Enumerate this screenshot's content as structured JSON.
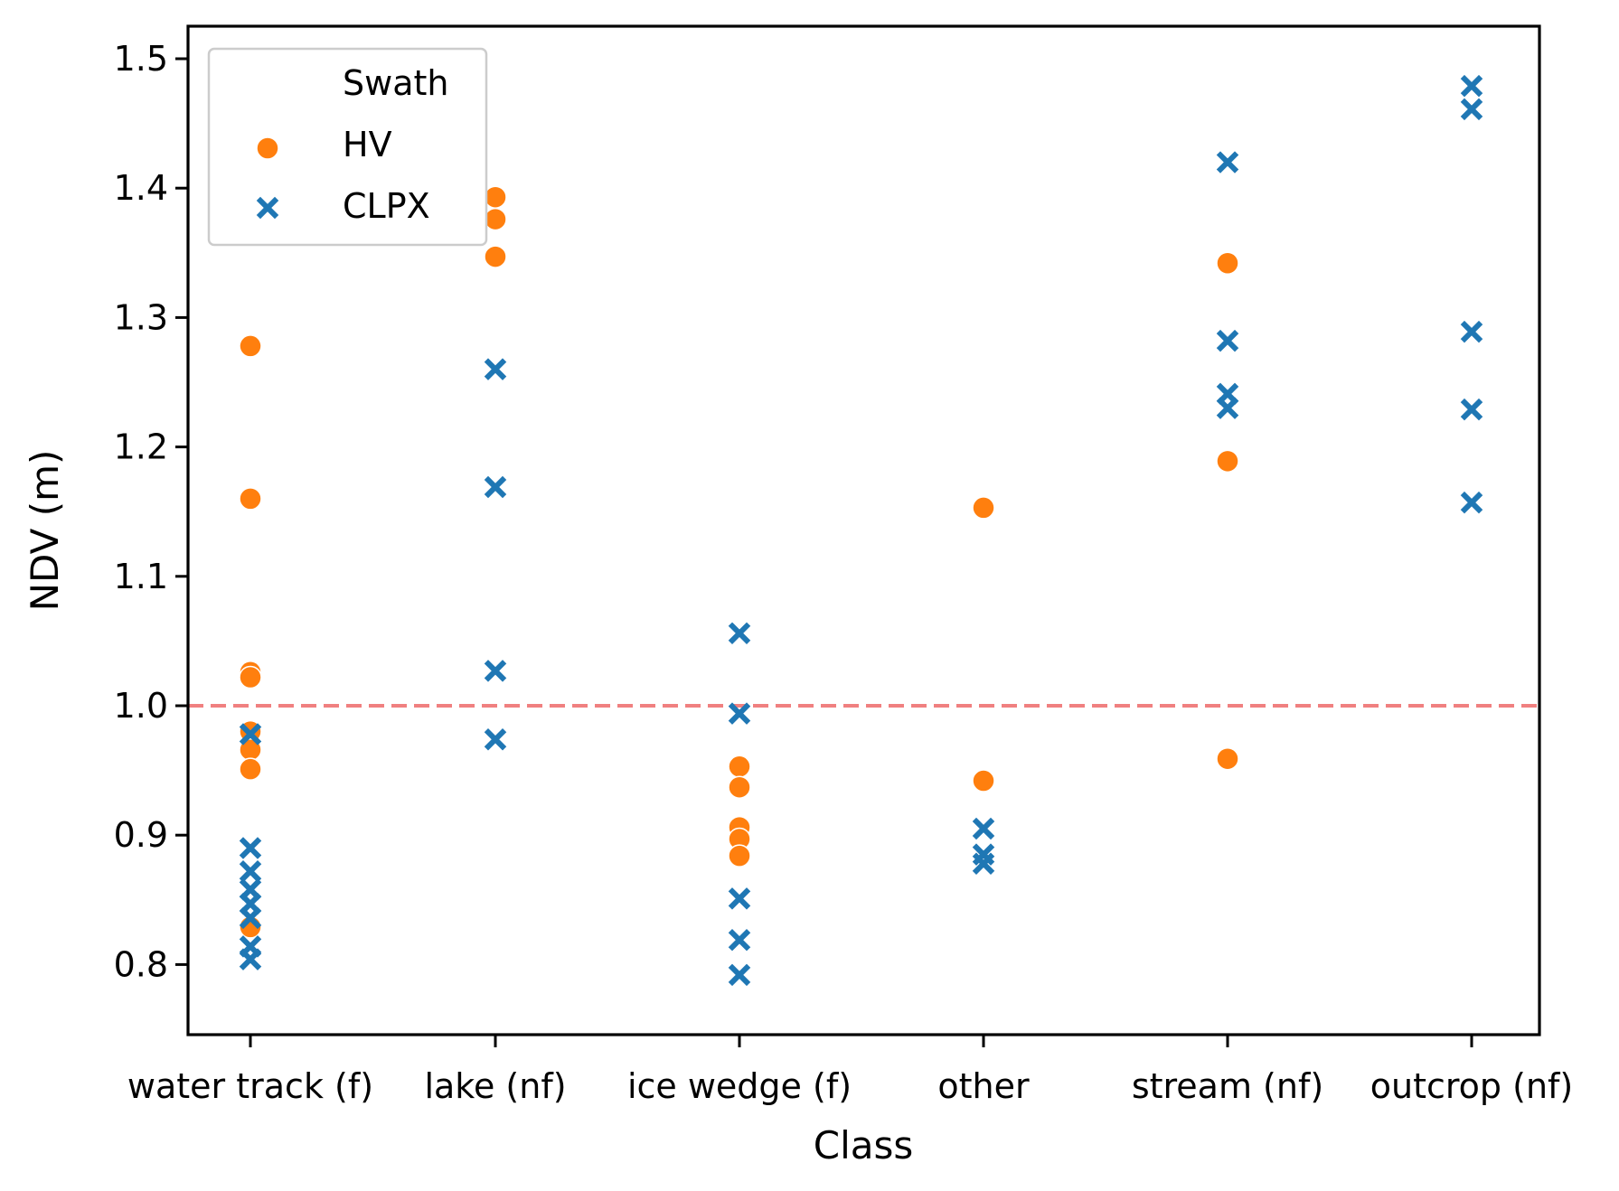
{
  "chart_data": {
    "type": "scatter",
    "title": "",
    "xlabel": "Class",
    "ylabel": "NDV (m)",
    "categories": [
      "water track (f)",
      "lake (nf)",
      "ice wedge (f)",
      "other",
      "stream (nf)",
      "outcrop (nf)"
    ],
    "ylim": [
      0.75,
      1.52
    ],
    "yticks": [
      0.8,
      0.9,
      1.0,
      1.1,
      1.2,
      1.3,
      1.4,
      1.5
    ],
    "ytick_labels": [
      "0.8",
      "0.9",
      "1.0",
      "1.1",
      "1.2",
      "1.3",
      "1.4",
      "1.5"
    ],
    "grid": false,
    "legend": {
      "title": "Swath",
      "placement": "top-left",
      "entries": [
        "HV",
        "CLPX"
      ]
    },
    "reference_line": {
      "y": 1.0,
      "style": "dashed",
      "color": "#f08080"
    },
    "series": [
      {
        "name": "HV",
        "marker": "circle",
        "color": "#ff7f0e",
        "points": [
          {
            "category": "water track (f)",
            "y": 1.278
          },
          {
            "category": "water track (f)",
            "y": 1.16
          },
          {
            "category": "water track (f)",
            "y": 1.026
          },
          {
            "category": "water track (f)",
            "y": 1.022
          },
          {
            "category": "water track (f)",
            "y": 0.98
          },
          {
            "category": "water track (f)",
            "y": 0.966
          },
          {
            "category": "water track (f)",
            "y": 0.951
          },
          {
            "category": "water track (f)",
            "y": 0.829
          },
          {
            "category": "lake (nf)",
            "y": 1.393
          },
          {
            "category": "lake (nf)",
            "y": 1.376
          },
          {
            "category": "lake (nf)",
            "y": 1.347
          },
          {
            "category": "ice wedge (f)",
            "y": 0.953
          },
          {
            "category": "ice wedge (f)",
            "y": 0.937
          },
          {
            "category": "ice wedge (f)",
            "y": 0.906
          },
          {
            "category": "ice wedge (f)",
            "y": 0.897
          },
          {
            "category": "ice wedge (f)",
            "y": 0.884
          },
          {
            "category": "other",
            "y": 1.153
          },
          {
            "category": "other",
            "y": 0.942
          },
          {
            "category": "stream (nf)",
            "y": 1.342
          },
          {
            "category": "stream (nf)",
            "y": 1.189
          },
          {
            "category": "stream (nf)",
            "y": 0.959
          }
        ]
      },
      {
        "name": "CLPX",
        "marker": "x",
        "color": "#1f77b4",
        "points": [
          {
            "category": "water track (f)",
            "y": 0.978
          },
          {
            "category": "water track (f)",
            "y": 0.89
          },
          {
            "category": "water track (f)",
            "y": 0.872
          },
          {
            "category": "water track (f)",
            "y": 0.858
          },
          {
            "category": "water track (f)",
            "y": 0.847
          },
          {
            "category": "water track (f)",
            "y": 0.836
          },
          {
            "category": "water track (f)",
            "y": 0.814
          },
          {
            "category": "water track (f)",
            "y": 0.804
          },
          {
            "category": "lake (nf)",
            "y": 1.26
          },
          {
            "category": "lake (nf)",
            "y": 1.169
          },
          {
            "category": "lake (nf)",
            "y": 1.027
          },
          {
            "category": "lake (nf)",
            "y": 0.974
          },
          {
            "category": "ice wedge (f)",
            "y": 1.056
          },
          {
            "category": "ice wedge (f)",
            "y": 0.994
          },
          {
            "category": "ice wedge (f)",
            "y": 0.851
          },
          {
            "category": "ice wedge (f)",
            "y": 0.819
          },
          {
            "category": "ice wedge (f)",
            "y": 0.792
          },
          {
            "category": "other",
            "y": 0.905
          },
          {
            "category": "other",
            "y": 0.885
          },
          {
            "category": "other",
            "y": 0.878
          },
          {
            "category": "stream (nf)",
            "y": 1.42
          },
          {
            "category": "stream (nf)",
            "y": 1.282
          },
          {
            "category": "stream (nf)",
            "y": 1.241
          },
          {
            "category": "stream (nf)",
            "y": 1.23
          },
          {
            "category": "outcrop (nf)",
            "y": 1.479
          },
          {
            "category": "outcrop (nf)",
            "y": 1.461
          },
          {
            "category": "outcrop (nf)",
            "y": 1.289
          },
          {
            "category": "outcrop (nf)",
            "y": 1.229
          },
          {
            "category": "outcrop (nf)",
            "y": 1.157
          }
        ]
      }
    ]
  }
}
